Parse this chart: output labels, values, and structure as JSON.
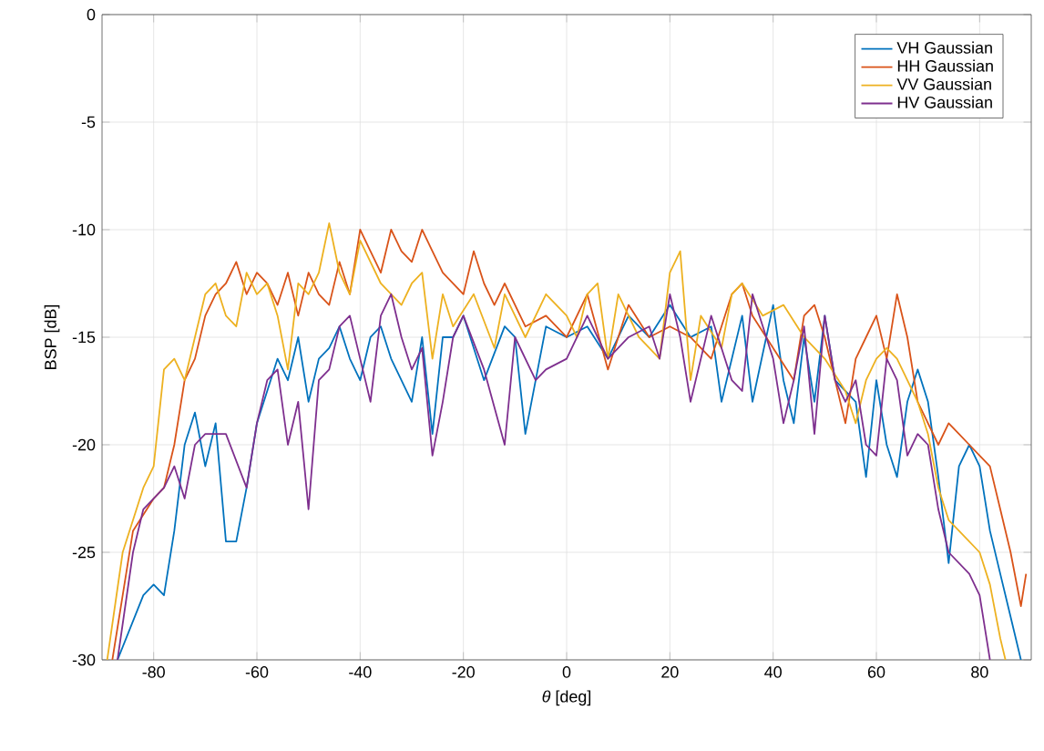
{
  "chart_data": {
    "type": "line",
    "xlabel": "*θ* [deg]",
    "ylabel": "BSP [dB]",
    "xlim": [
      -90,
      90
    ],
    "ylim": [
      -30,
      0
    ],
    "xticks": [
      -80,
      -60,
      -40,
      -20,
      0,
      20,
      40,
      60,
      80
    ],
    "yticks": [
      -30,
      -25,
      -20,
      -15,
      -10,
      -5,
      0
    ],
    "grid": true,
    "legend": "top right",
    "marker": "none",
    "line_style": "solid",
    "series": [
      {
        "name": "VH Gaussian",
        "color": "#0072bd",
        "x": [
          -87,
          -82,
          -80,
          -78,
          -76,
          -74,
          -72,
          -70,
          -68,
          -66,
          -64,
          -62,
          -60,
          -58,
          -56,
          -54,
          -52,
          -50,
          -48,
          -46,
          -44,
          -42,
          -40,
          -38,
          -36,
          -34,
          -30,
          -28,
          -26,
          -24,
          -22,
          -20,
          -16,
          -12,
          -10,
          -8,
          -4,
          0,
          4,
          8,
          12,
          16,
          20,
          24,
          28,
          30,
          34,
          36,
          40,
          42,
          44,
          46,
          48,
          50,
          52,
          56,
          58,
          60,
          62,
          64,
          66,
          68,
          70,
          72,
          74,
          76,
          78,
          80,
          82,
          84,
          86,
          88
        ],
        "values": [
          -30,
          -27,
          -26.5,
          -27,
          -24,
          -20,
          -18.5,
          -21,
          -19,
          -24.5,
          -24.5,
          -22,
          -19,
          -17.5,
          -16,
          -17,
          -15,
          -18,
          -16,
          -15.5,
          -14.5,
          -16,
          -17,
          -15,
          -14.5,
          -16,
          -18,
          -15,
          -19.5,
          -15,
          -15,
          -14,
          -17,
          -14.5,
          -15,
          -19.5,
          -14.5,
          -15,
          -14.5,
          -16,
          -14,
          -15,
          -13.5,
          -15,
          -14.5,
          -18,
          -14,
          -18,
          -13.5,
          -17,
          -19,
          -15,
          -18,
          -14,
          -17,
          -18,
          -21.5,
          -17,
          -20,
          -21.5,
          -18,
          -16.5,
          -18,
          -21.5,
          -25.5,
          -21,
          -20,
          -21,
          -24,
          -26,
          -28,
          -30
        ]
      },
      {
        "name": "HH Gaussian",
        "color": "#d95319",
        "x": [
          -88,
          -84,
          -80,
          -78,
          -76,
          -74,
          -72,
          -70,
          -68,
          -66,
          -64,
          -62,
          -60,
          -58,
          -56,
          -54,
          -52,
          -50,
          -48,
          -46,
          -44,
          -42,
          -40,
          -38,
          -36,
          -34,
          -32,
          -30,
          -28,
          -26,
          -24,
          -20,
          -18,
          -16,
          -14,
          -12,
          -8,
          -4,
          0,
          4,
          8,
          12,
          16,
          20,
          24,
          28,
          32,
          34,
          36,
          40,
          44,
          46,
          48,
          50,
          54,
          56,
          58,
          60,
          62,
          64,
          66,
          68,
          70,
          72,
          74,
          76,
          78,
          80,
          82,
          84,
          86,
          88,
          89
        ],
        "values": [
          -30,
          -24,
          -22.5,
          -22,
          -20,
          -17,
          -16,
          -14,
          -13,
          -12.5,
          -11.5,
          -13,
          -12,
          -12.5,
          -13.5,
          -12,
          -14,
          -12,
          -13,
          -13.5,
          -11.5,
          -13,
          -10,
          -11,
          -12,
          -10,
          -11,
          -11.5,
          -10,
          -11,
          -12,
          -13,
          -11,
          -12.5,
          -13.5,
          -12.5,
          -14.5,
          -14,
          -15,
          -13,
          -16.5,
          -13.5,
          -15,
          -14.5,
          -15,
          -16,
          -13,
          -12.5,
          -14,
          -15.5,
          -17,
          -14,
          -13.5,
          -15,
          -19,
          -16,
          -15,
          -14,
          -16,
          -13,
          -15,
          -18,
          -19,
          -20,
          -19,
          -19.5,
          -20,
          -20.5,
          -21,
          -23,
          -25,
          -27.5,
          -26
        ]
      },
      {
        "name": "VV Gaussian",
        "color": "#edb120",
        "x": [
          -89,
          -86,
          -82,
          -80,
          -78,
          -76,
          -74,
          -72,
          -70,
          -68,
          -66,
          -64,
          -62,
          -60,
          -58,
          -56,
          -54,
          -52,
          -50,
          -48,
          -46,
          -44,
          -42,
          -40,
          -36,
          -32,
          -30,
          -28,
          -26,
          -24,
          -22,
          -18,
          -14,
          -12,
          -8,
          -4,
          0,
          2,
          4,
          6,
          8,
          10,
          12,
          14,
          18,
          20,
          22,
          24,
          26,
          30,
          32,
          34,
          38,
          42,
          46,
          50,
          54,
          56,
          58,
          60,
          62,
          64,
          66,
          68,
          70,
          72,
          74,
          76,
          80,
          82,
          84,
          85
        ],
        "values": [
          -30,
          -25,
          -22,
          -21,
          -16.5,
          -16,
          -17,
          -15,
          -13,
          -12.5,
          -14,
          -14.5,
          -12,
          -13,
          -12.5,
          -14,
          -16.5,
          -12.5,
          -13,
          -12,
          -9.7,
          -12,
          -13,
          -10.5,
          -12.5,
          -13.5,
          -12.5,
          -12,
          -16,
          -13,
          -14.5,
          -13,
          -15.5,
          -13,
          -15,
          -13,
          -14,
          -15,
          -13,
          -12.5,
          -16,
          -13,
          -14,
          -15,
          -16,
          -12,
          -11,
          -17,
          -14,
          -15.5,
          -13,
          -12.5,
          -14,
          -13.5,
          -15,
          -16,
          -17.5,
          -19,
          -17,
          -16,
          -15.5,
          -16,
          -17,
          -18,
          -19.5,
          -22,
          -23.5,
          -24,
          -25,
          -26.5,
          -29,
          -30
        ]
      },
      {
        "name": "HV Gaussian",
        "color": "#7e2f8e",
        "x": [
          -87,
          -84,
          -82,
          -78,
          -76,
          -74,
          -72,
          -70,
          -66,
          -62,
          -60,
          -58,
          -56,
          -54,
          -52,
          -50,
          -48,
          -46,
          -44,
          -42,
          -40,
          -38,
          -36,
          -34,
          -32,
          -30,
          -28,
          -26,
          -24,
          -22,
          -20,
          -16,
          -12,
          -10,
          -6,
          -4,
          0,
          4,
          8,
          12,
          16,
          18,
          20,
          22,
          24,
          28,
          32,
          34,
          36,
          40,
          42,
          44,
          46,
          48,
          50,
          52,
          54,
          56,
          58,
          60,
          62,
          64,
          66,
          68,
          70,
          72,
          74,
          76,
          78,
          80,
          82
        ],
        "values": [
          -30,
          -25,
          -23,
          -22,
          -21,
          -22.5,
          -20,
          -19.5,
          -19.5,
          -22,
          -19,
          -17,
          -16.5,
          -20,
          -18,
          -23,
          -17,
          -16.5,
          -14.5,
          -14,
          -16,
          -18,
          -14,
          -13,
          -15,
          -16.5,
          -15.5,
          -20.5,
          -18,
          -15,
          -14,
          -16.5,
          -20,
          -15,
          -17,
          -16.5,
          -16,
          -14,
          -16,
          -15,
          -14.5,
          -16,
          -13,
          -15,
          -18,
          -14,
          -17,
          -17.5,
          -13,
          -16,
          -19,
          -17,
          -14.5,
          -19.5,
          -14,
          -17,
          -18,
          -17,
          -20,
          -20.5,
          -16,
          -17,
          -20.5,
          -19.5,
          -20,
          -23,
          -25,
          -25.5,
          -26,
          -27,
          -30
        ]
      }
    ]
  }
}
